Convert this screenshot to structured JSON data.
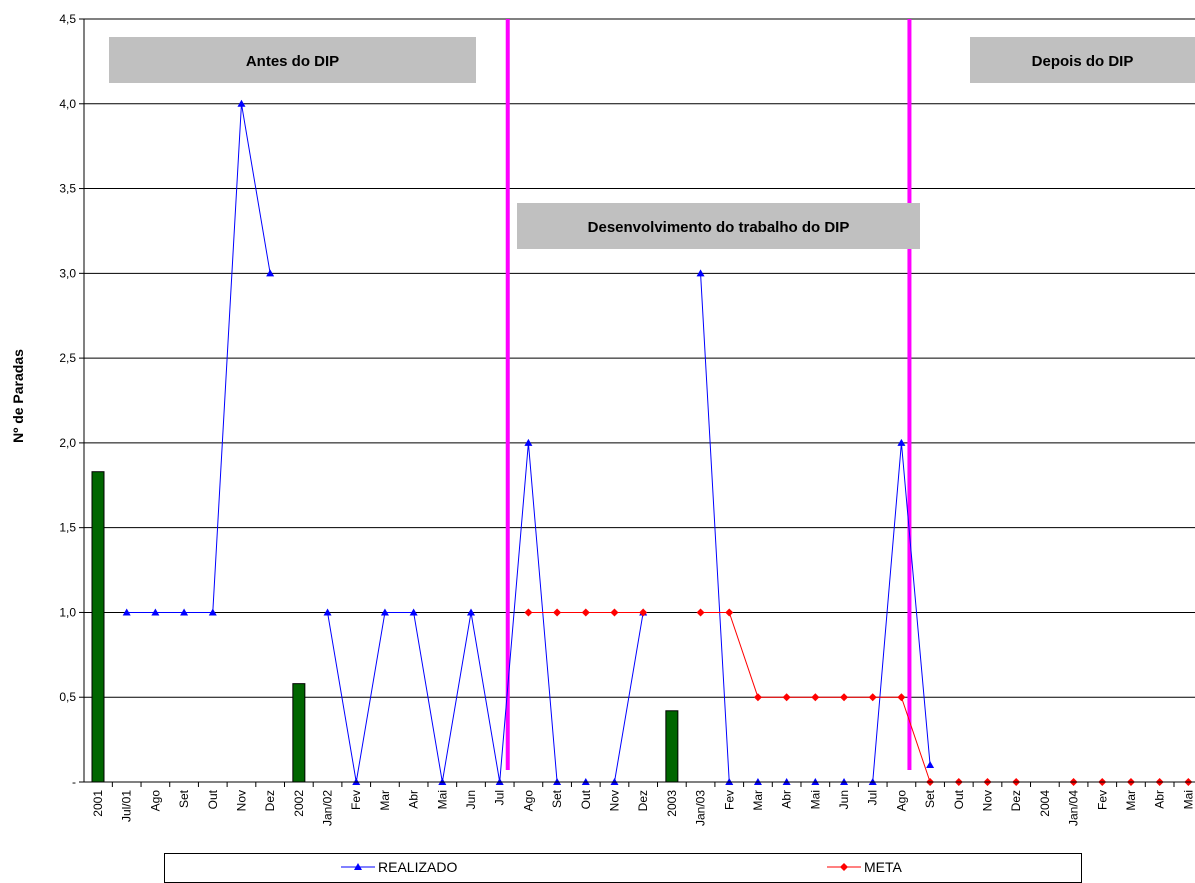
{
  "chart_data": {
    "type": "line",
    "ylabel": "Nº de Paradas",
    "xlabel": "",
    "ylim": [
      0,
      4.5
    ],
    "y_ticks": [
      {
        "value": 0,
        "label": "-"
      },
      {
        "value": 0.5,
        "label": "0,5"
      },
      {
        "value": 1.0,
        "label": "1,0"
      },
      {
        "value": 1.5,
        "label": "1,5"
      },
      {
        "value": 2.0,
        "label": "2,0"
      },
      {
        "value": 2.5,
        "label": "2,5"
      },
      {
        "value": 3.0,
        "label": "3,0"
      },
      {
        "value": 3.5,
        "label": "3,5"
      },
      {
        "value": 4.0,
        "label": "4,0"
      },
      {
        "value": 4.5,
        "label": "4,5"
      }
    ],
    "categories": [
      "2001",
      "Jul/01",
      "Ago",
      "Set",
      "Out",
      "Nov",
      "Dez",
      "2002",
      "Jan/02",
      "Fev",
      "Mar",
      "Abr",
      "Mai",
      "Jun",
      "Jul",
      "Ago",
      "Set",
      "Out",
      "Nov",
      "Dez",
      "2003",
      "Jan/03",
      "Fev",
      "Mar",
      "Abr",
      "Mai",
      "Jun",
      "Jul",
      "Ago",
      "Set",
      "Out",
      "Nov",
      "Dez",
      "2004",
      "Jan/04",
      "Fev",
      "Mar",
      "Abr",
      "Mai"
    ],
    "bars": {
      "color": "#006600",
      "values": [
        1.83,
        null,
        null,
        null,
        null,
        null,
        null,
        0.58,
        null,
        null,
        null,
        null,
        null,
        null,
        null,
        null,
        null,
        null,
        null,
        null,
        0.42,
        null,
        null,
        null,
        null,
        null,
        null,
        null,
        null,
        null,
        null,
        null,
        null,
        null,
        null,
        null,
        null,
        null,
        null
      ]
    },
    "series": [
      {
        "name": "REALIZADO",
        "color": "#0000ff",
        "marker": "triangle",
        "values": [
          null,
          1,
          1,
          1,
          1,
          4,
          3,
          null,
          1,
          0,
          1,
          1,
          0,
          1,
          0,
          2,
          0,
          0,
          0,
          1,
          null,
          3,
          0,
          0,
          0,
          0,
          0,
          0,
          2,
          0.1,
          null,
          null,
          null,
          null,
          null,
          null,
          null,
          null,
          null
        ]
      },
      {
        "name": "META",
        "color": "#ff0000",
        "marker": "diamond",
        "values": [
          null,
          null,
          null,
          null,
          null,
          null,
          null,
          null,
          null,
          null,
          null,
          null,
          null,
          null,
          null,
          1,
          1,
          1,
          1,
          1,
          null,
          1,
          1,
          0.5,
          0.5,
          0.5,
          0.5,
          0.5,
          0.5,
          0,
          0,
          0,
          0,
          null,
          0,
          0,
          0,
          0,
          0
        ]
      }
    ],
    "phase_lines": {
      "color": "#ff00ff",
      "after_category_index": [
        14,
        28
      ]
    },
    "annotations": [
      {
        "text": "Antes do  DIP"
      },
      {
        "text": "Desenvolvimento do trabalho do  DIP"
      },
      {
        "text": "Depois do  DIP"
      }
    ],
    "grid": true,
    "legend_position": "bottom"
  }
}
